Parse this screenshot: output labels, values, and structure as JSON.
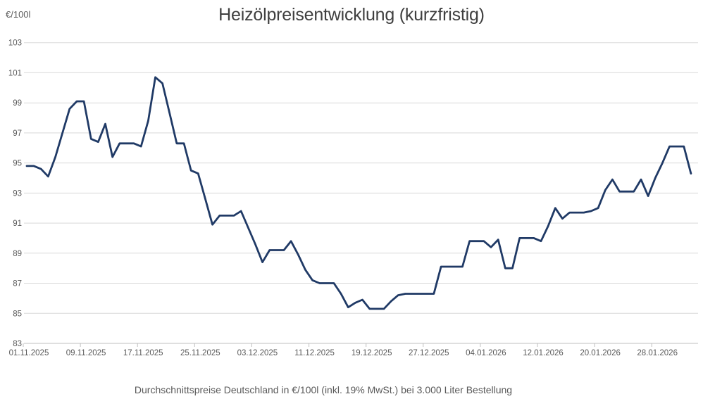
{
  "chart": {
    "title": "Heizölpreisentwicklung (kurzfristig)",
    "y_unit": "€/100l",
    "footer": "Durchschnittspreise Deutschland in €/100l (inkl. 19% MwSt.) bei 3.000 Liter Bestellung"
  },
  "style": {
    "line_color": "#203a66",
    "grid_color": "#d9d9d9",
    "axis_color": "#bfbfbf",
    "tick_text_color": "#595959",
    "title_color": "#3f3f3f"
  },
  "chart_data": {
    "type": "line",
    "title": "Heizölpreisentwicklung (kurzfristig)",
    "xlabel": "",
    "ylabel": "€/100l",
    "ylim": [
      83,
      103
    ],
    "yticks": [
      83,
      85,
      87,
      89,
      91,
      93,
      95,
      97,
      99,
      101,
      103
    ],
    "grid": "horizontal",
    "legend": "none",
    "x_tick_labels": [
      "01.11.2025",
      "09.11.2025",
      "17.11.2025",
      "25.11.2025",
      "03.12.2025",
      "11.12.2025",
      "19.12.2025",
      "27.12.2025",
      "04.01.2026",
      "12.01.2026",
      "20.01.2026",
      "28.01.2026"
    ],
    "x_tick_interval_days": 8,
    "x": [
      "01.11.2025",
      "02.11.2025",
      "03.11.2025",
      "04.11.2025",
      "05.11.2025",
      "06.11.2025",
      "07.11.2025",
      "08.11.2025",
      "09.11.2025",
      "10.11.2025",
      "11.11.2025",
      "12.11.2025",
      "13.11.2025",
      "14.11.2025",
      "15.11.2025",
      "16.11.2025",
      "17.11.2025",
      "18.11.2025",
      "19.11.2025",
      "20.11.2025",
      "21.11.2025",
      "22.11.2025",
      "23.11.2025",
      "24.11.2025",
      "25.11.2025",
      "26.11.2025",
      "27.11.2025",
      "28.11.2025",
      "29.11.2025",
      "30.11.2025",
      "01.12.2025",
      "02.12.2025",
      "03.12.2025",
      "04.12.2025",
      "05.12.2025",
      "06.12.2025",
      "07.12.2025",
      "08.12.2025",
      "09.12.2025",
      "10.12.2025",
      "11.12.2025",
      "12.12.2025",
      "13.12.2025",
      "14.12.2025",
      "15.12.2025",
      "16.12.2025",
      "17.12.2025",
      "18.12.2025",
      "19.12.2025",
      "20.12.2025",
      "21.12.2025",
      "22.12.2025",
      "23.12.2025",
      "24.12.2025",
      "25.12.2025",
      "26.12.2025",
      "27.12.2025",
      "28.12.2025",
      "29.12.2025",
      "30.12.2025",
      "31.12.2025",
      "01.01.2026",
      "02.01.2026",
      "03.01.2026",
      "04.01.2026",
      "05.01.2026",
      "06.01.2026",
      "07.01.2026",
      "08.01.2026",
      "09.01.2026",
      "10.01.2026",
      "11.01.2026",
      "12.01.2026",
      "13.01.2026",
      "14.01.2026",
      "15.01.2026",
      "16.01.2026",
      "17.01.2026",
      "18.01.2026",
      "19.01.2026",
      "20.01.2026",
      "21.01.2026",
      "22.01.2026",
      "23.01.2026",
      "24.01.2026",
      "25.01.2026",
      "26.01.2026",
      "27.01.2026",
      "28.01.2026",
      "29.01.2026",
      "30.01.2026",
      "31.01.2026",
      "01.02.2026",
      "02.02.2026"
    ],
    "values": [
      94.8,
      94.8,
      94.6,
      94.1,
      95.4,
      97.0,
      98.6,
      99.1,
      99.1,
      96.6,
      96.4,
      97.6,
      95.4,
      96.3,
      96.3,
      96.3,
      96.1,
      97.8,
      100.7,
      100.3,
      98.3,
      96.3,
      96.3,
      94.5,
      94.3,
      92.6,
      90.9,
      91.5,
      91.5,
      91.5,
      91.8,
      90.7,
      89.6,
      88.4,
      89.2,
      89.2,
      89.2,
      89.8,
      88.9,
      87.9,
      87.2,
      87.0,
      87.0,
      87.0,
      86.3,
      85.4,
      85.7,
      85.9,
      85.3,
      85.3,
      85.3,
      85.8,
      86.2,
      86.3,
      86.3,
      86.3,
      86.3,
      86.3,
      88.1,
      88.1,
      88.1,
      88.1,
      89.8,
      89.8,
      89.8,
      89.4,
      89.9,
      88.0,
      88.0,
      90.0,
      90.0,
      90.0,
      89.8,
      90.8,
      92.0,
      91.3,
      91.7,
      91.7,
      91.7,
      91.8,
      92.0,
      93.2,
      93.9,
      93.1,
      93.1,
      93.1,
      93.9,
      92.8,
      94.0,
      95.0,
      96.1,
      96.1,
      96.1,
      94.3
    ],
    "line_color": "#203a66"
  }
}
